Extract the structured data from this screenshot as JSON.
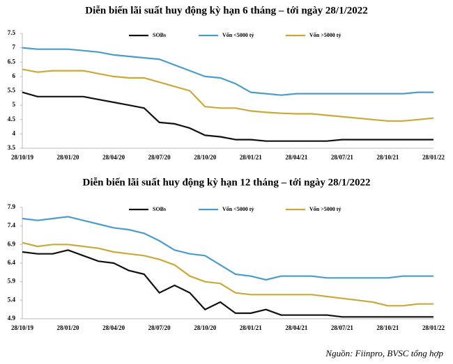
{
  "chart_data": [
    {
      "type": "line",
      "title": "Diễn biến lãi suất huy động kỳ hạn 6 tháng – tới ngày 28/1/2022",
      "categories": [
        "28/10/19",
        null,
        null,
        "28/01/20",
        null,
        null,
        "28/04/20",
        null,
        null,
        "28/07/20",
        null,
        null,
        "28/10/20",
        null,
        null,
        "28/01/21",
        null,
        null,
        "28/04/21",
        null,
        null,
        "28/07/21",
        null,
        null,
        "28/10/21",
        null,
        null,
        "28/01/22"
      ],
      "ylim": [
        3.5,
        7.5
      ],
      "yticks": [
        3.5,
        4,
        4.5,
        5,
        5.5,
        6,
        6.5,
        7,
        7.5
      ],
      "grid": false,
      "legend": "top",
      "series": [
        {
          "name": "SOBs",
          "color": "#111111",
          "values": [
            5.45,
            5.3,
            5.3,
            5.3,
            5.3,
            5.2,
            5.1,
            5.0,
            4.9,
            4.4,
            4.35,
            4.2,
            3.95,
            3.9,
            3.8,
            3.8,
            3.75,
            3.75,
            3.75,
            3.75,
            3.75,
            3.8,
            3.8,
            3.8,
            3.8,
            3.8,
            3.8,
            3.8
          ]
        },
        {
          "name": "Vốn <5000 tỷ",
          "color": "#4a9cc9",
          "values": [
            7.0,
            6.95,
            6.95,
            6.95,
            6.9,
            6.85,
            6.75,
            6.7,
            6.65,
            6.6,
            6.4,
            6.2,
            6.0,
            5.95,
            5.75,
            5.45,
            5.4,
            5.35,
            5.4,
            5.4,
            5.4,
            5.4,
            5.4,
            5.4,
            5.4,
            5.4,
            5.45,
            5.45
          ]
        },
        {
          "name": "Vốn >5000 tỷ",
          "color": "#c8a93a",
          "values": [
            6.25,
            6.15,
            6.2,
            6.2,
            6.2,
            6.1,
            6.0,
            5.95,
            5.95,
            5.8,
            5.65,
            5.5,
            4.95,
            4.9,
            4.9,
            4.8,
            4.75,
            4.72,
            4.7,
            4.7,
            4.65,
            4.6,
            4.55,
            4.5,
            4.45,
            4.45,
            4.5,
            4.55
          ]
        }
      ]
    },
    {
      "type": "line",
      "title": "Diễn biến lãi suất huy động kỳ hạn 12 tháng – tới ngày 28/1/2022",
      "categories": [
        "28/10/19",
        null,
        null,
        "28/01/20",
        null,
        null,
        "28/04/20",
        null,
        null,
        "28/07/20",
        null,
        null,
        "28/10/20",
        null,
        null,
        "28/01/21",
        null,
        null,
        "28/04/21",
        null,
        null,
        "28/07/21",
        null,
        null,
        "28/10/21",
        null,
        null,
        "28/01/22"
      ],
      "ylim": [
        4.9,
        7.9
      ],
      "yticks": [
        4.9,
        5.4,
        5.9,
        6.4,
        6.9,
        7.4,
        7.9
      ],
      "grid": false,
      "legend": "top",
      "series": [
        {
          "name": "SOBs",
          "color": "#111111",
          "values": [
            6.7,
            6.65,
            6.65,
            6.75,
            6.6,
            6.45,
            6.4,
            6.2,
            6.1,
            5.6,
            5.8,
            5.6,
            5.15,
            5.35,
            5.05,
            5.05,
            5.15,
            5.0,
            5.0,
            5.0,
            5.0,
            4.95,
            4.95,
            4.95,
            4.95,
            4.95,
            4.95,
            4.95
          ]
        },
        {
          "name": "Vốn <5000 tỷ",
          "color": "#4a9cc9",
          "values": [
            7.6,
            7.55,
            7.6,
            7.65,
            7.55,
            7.45,
            7.35,
            7.3,
            7.2,
            7.0,
            6.75,
            6.65,
            6.6,
            6.35,
            6.1,
            6.05,
            5.95,
            6.05,
            6.05,
            6.05,
            6.0,
            6.0,
            6.0,
            6.0,
            6.0,
            6.05,
            6.05,
            6.05
          ]
        },
        {
          "name": "Vốn >5000 tỷ",
          "color": "#c8a93a",
          "values": [
            6.95,
            6.85,
            6.9,
            6.9,
            6.85,
            6.8,
            6.7,
            6.65,
            6.6,
            6.5,
            6.35,
            6.05,
            5.9,
            5.85,
            5.6,
            5.55,
            5.55,
            5.55,
            5.55,
            5.55,
            5.5,
            5.45,
            5.4,
            5.35,
            5.25,
            5.25,
            5.3,
            5.3
          ]
        }
      ]
    }
  ],
  "source": "Nguồn: Fiinpro, BVSC tổng hợp"
}
